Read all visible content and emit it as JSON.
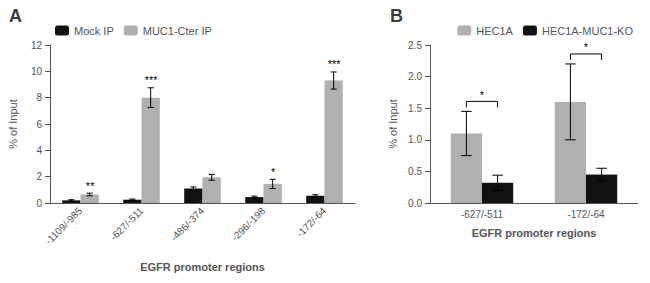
{
  "chart_data": [
    {
      "type": "bar",
      "title": "A",
      "categories": [
        "-1109/-985",
        "-627/-511",
        "-486/-374",
        "-296/-198",
        "-172/-64"
      ],
      "series": [
        {
          "name": "Mock IP",
          "color": "#111111",
          "values": [
            0.2,
            0.25,
            1.1,
            0.45,
            0.55
          ],
          "errors": [
            0.05,
            0.05,
            0.12,
            0.07,
            0.08
          ]
        },
        {
          "name": "MUC1-Cter IP",
          "color": "#b0b0b0",
          "values": [
            0.65,
            8.0,
            1.95,
            1.45,
            9.3
          ],
          "errors": [
            0.1,
            0.75,
            0.22,
            0.35,
            0.65
          ]
        }
      ],
      "significance": [
        "**",
        "***",
        null,
        "*",
        "***"
      ],
      "xlabel": "EGFR promoter regions",
      "ylabel": "% of Input",
      "ylim": [
        0,
        12
      ],
      "yticks": [
        0,
        2,
        4,
        6,
        8,
        10,
        12
      ],
      "legend": "upper left",
      "grid": false
    },
    {
      "type": "bar",
      "title": "B",
      "categories": [
        "-627/-511",
        "-172/-64"
      ],
      "series": [
        {
          "name": "HEC1A",
          "color": "#b0b0b0",
          "values": [
            1.1,
            1.6
          ],
          "errors": [
            0.35,
            0.6
          ]
        },
        {
          "name": "HEC1A-MUC1-KO",
          "color": "#111111",
          "values": [
            0.32,
            0.45
          ],
          "errors": [
            0.12,
            0.1
          ]
        }
      ],
      "significance_brackets": [
        "*",
        "*"
      ],
      "xlabel": "EGFR promoter regions",
      "ylabel": "% of Input",
      "ylim": [
        0,
        2.5
      ],
      "yticks": [
        {
          "value": 0,
          "label": "0.0"
        },
        0.5,
        {
          "value": 1,
          "label": "1.0"
        },
        1.5,
        {
          "value": 2,
          "label": "2.0"
        },
        2.5
      ],
      "legend": "upper right",
      "grid": false
    }
  ]
}
